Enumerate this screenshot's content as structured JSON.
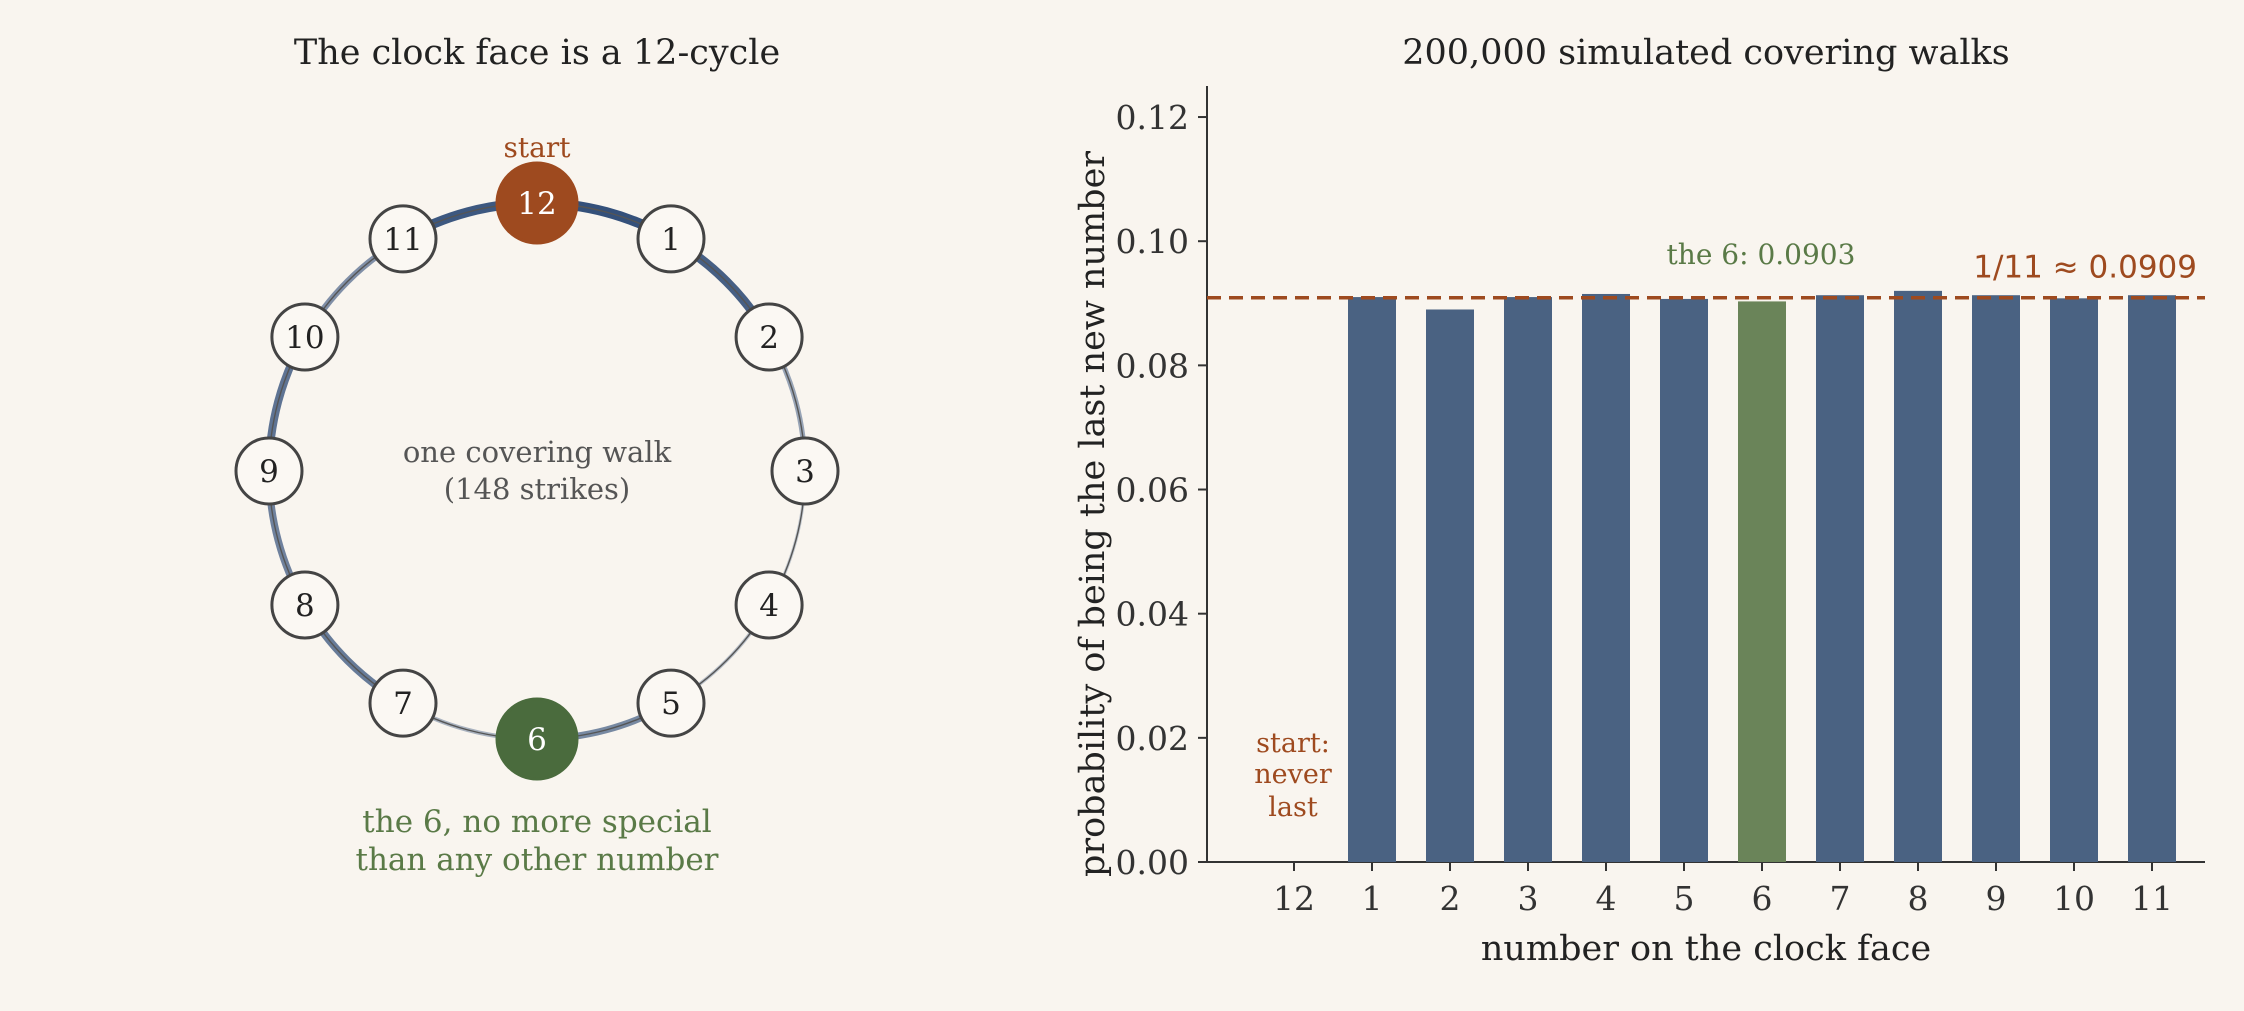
{
  "colors": {
    "background": "#f9f5ef",
    "bar": "#4a6282",
    "bar_highlight": "#6a8459",
    "start": "#9e4a1f",
    "six": "#4a6b3d",
    "accent_text_green": "#5a7a47",
    "reference_line": "#9e4a1f",
    "walk": "#34507a",
    "node_stroke": "#444444",
    "axis": "#333333"
  },
  "left_panel": {
    "title": "The clock face is a 12-cycle",
    "start_label": "start",
    "center_line1": "one covering walk",
    "center_line2": "(148 strikes)",
    "six_note_line1": "the 6, no more special",
    "six_note_line2": "than any other number",
    "nodes": [
      "12",
      "1",
      "2",
      "3",
      "4",
      "5",
      "6",
      "7",
      "8",
      "9",
      "10",
      "11"
    ],
    "edge_walk_intensity": [
      {
        "from": "12",
        "to": "1",
        "intensity": 1.0
      },
      {
        "from": "1",
        "to": "2",
        "intensity": 0.9
      },
      {
        "from": "2",
        "to": "3",
        "intensity": 0.4
      },
      {
        "from": "3",
        "to": "4",
        "intensity": 0.15
      },
      {
        "from": "4",
        "to": "5",
        "intensity": 0.2
      },
      {
        "from": "5",
        "to": "6",
        "intensity": 0.6
      },
      {
        "from": "6",
        "to": "7",
        "intensity": 0.3
      },
      {
        "from": "7",
        "to": "8",
        "intensity": 0.7
      },
      {
        "from": "8",
        "to": "9",
        "intensity": 0.65
      },
      {
        "from": "9",
        "to": "10",
        "intensity": 0.75
      },
      {
        "from": "10",
        "to": "11",
        "intensity": 0.55
      },
      {
        "from": "11",
        "to": "12",
        "intensity": 0.95
      }
    ]
  },
  "chart_data": {
    "type": "bar",
    "title": "200,000 simulated covering walks",
    "xlabel": "number on the clock face",
    "ylabel": "probability of being the last new number",
    "categories": [
      "12",
      "1",
      "2",
      "3",
      "4",
      "5",
      "6",
      "7",
      "8",
      "9",
      "10",
      "11"
    ],
    "values": [
      0,
      0.091,
      0.089,
      0.091,
      0.0915,
      0.0907,
      0.0903,
      0.0913,
      0.092,
      0.0913,
      0.0908,
      0.0913
    ],
    "highlight_category": "6",
    "ylim": [
      0,
      0.125
    ],
    "yticks": [
      "0.00",
      "0.02",
      "0.04",
      "0.06",
      "0.08",
      "0.10",
      "0.12"
    ],
    "reference_line": {
      "value": 0.0909,
      "label": "1/11 ≈ 0.0909"
    },
    "annotations": {
      "six_label": "the 6: 0.0903",
      "start_label": [
        "start:",
        "never",
        "last"
      ]
    },
    "grid": false
  }
}
